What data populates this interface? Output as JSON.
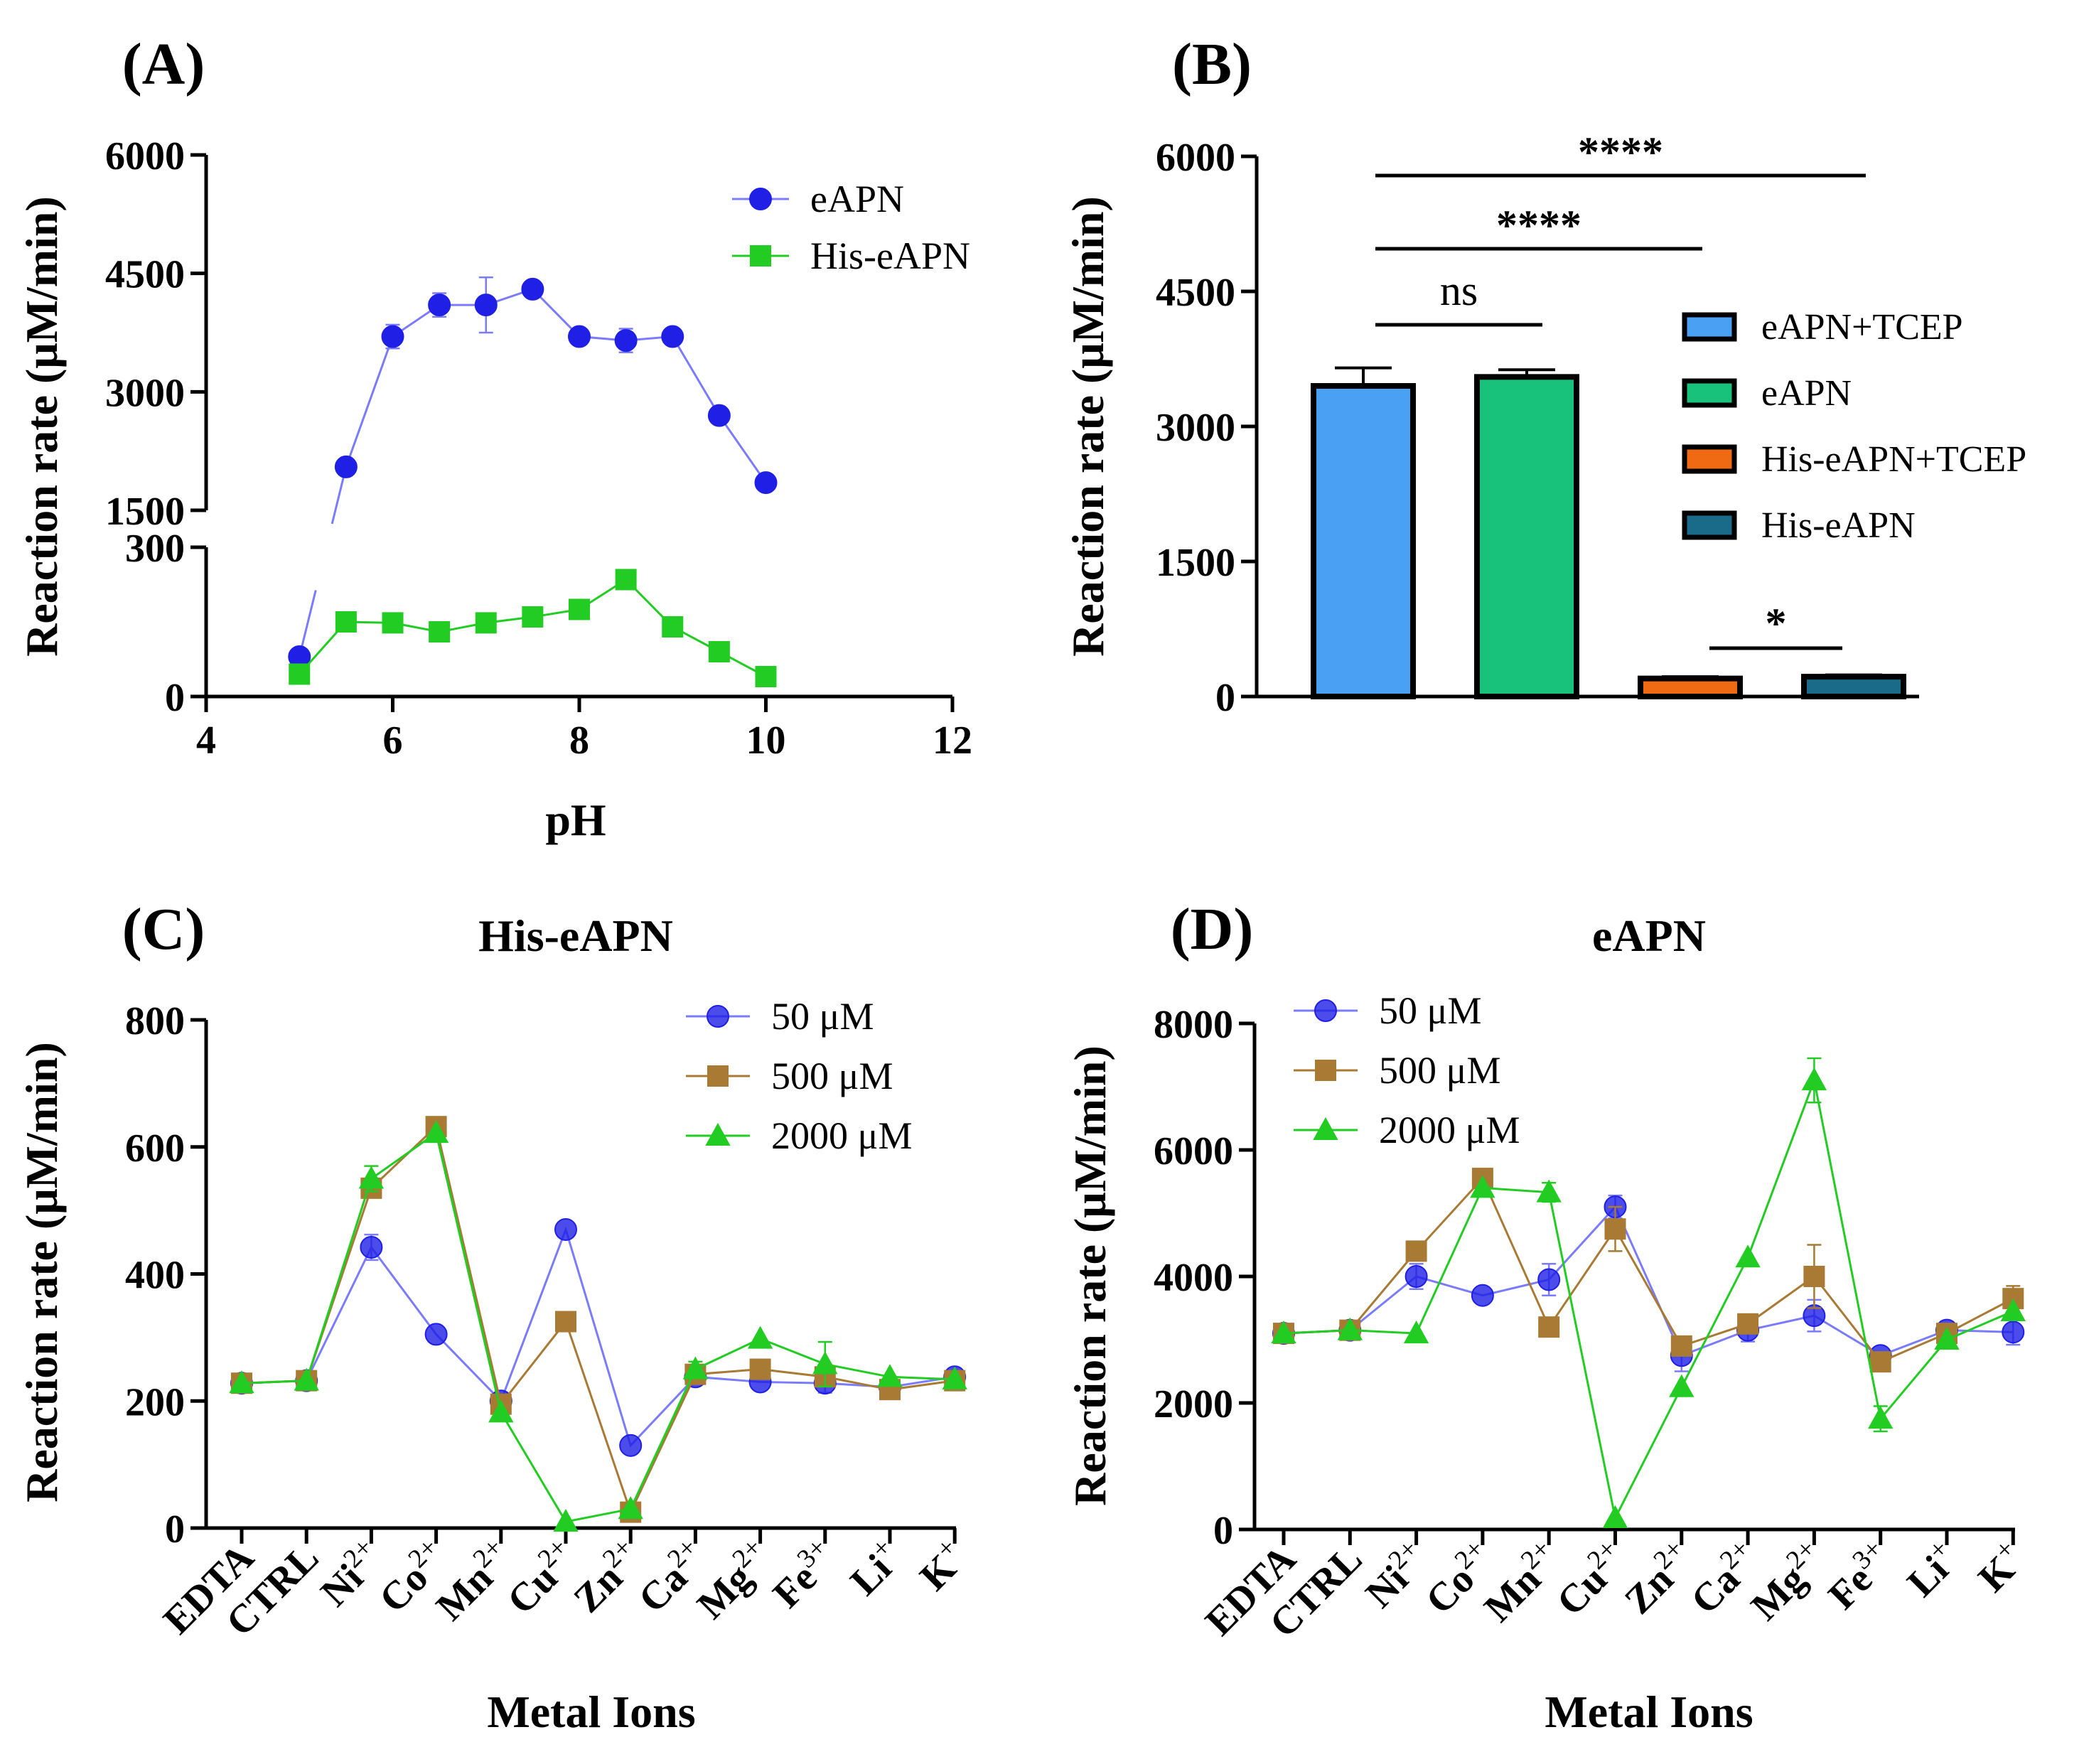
{
  "colors": {
    "blue": "#1f1fe6",
    "blue_light": "#7b7bff",
    "green": "#22cc22",
    "brown": "#a87a34",
    "bar1": "#4aa0f2",
    "bar2": "#19c27a",
    "bar3": "#f06a14",
    "bar4": "#1a6a8a",
    "axis": "#000000"
  },
  "chart_data": [
    {
      "panel": "(A)",
      "type": "line",
      "title": "",
      "xlabel": "pH",
      "ylabel": "Reaction rate (μM/min)",
      "xlim": [
        4,
        12
      ],
      "xticks": [
        "4",
        "6",
        "8",
        "10",
        "12"
      ],
      "y_axis_broken": true,
      "ylim_lower": [
        0,
        300
      ],
      "ylim_upper": [
        1500,
        6000
      ],
      "yticks_lower": [
        "0",
        "300"
      ],
      "yticks_upper": [
        "1500",
        "3000",
        "4500",
        "6000"
      ],
      "x": [
        5,
        5.5,
        6,
        6.5,
        7,
        7.5,
        8,
        8.5,
        9,
        9.5,
        10
      ],
      "series": [
        {
          "name": "eAPN",
          "marker": "circle",
          "values": [
            80,
            2050,
            3700,
            4100,
            4100,
            4300,
            3700,
            3650,
            3700,
            2700,
            1850
          ],
          "errors": [
            0,
            0,
            150,
            150,
            350,
            0,
            0,
            150,
            0,
            0,
            0
          ]
        },
        {
          "name": "His-eAPN",
          "marker": "square",
          "values": [
            45,
            150,
            148,
            130,
            148,
            160,
            175,
            235,
            140,
            90,
            40
          ],
          "errors": [
            0,
            0,
            0,
            0,
            0,
            0,
            0,
            0,
            0,
            0,
            0
          ]
        }
      ],
      "legend_position": "top-right"
    },
    {
      "panel": "(B)",
      "type": "bar",
      "title": "",
      "xlabel": "",
      "ylabel": "Reaction rate (μM/min)",
      "ylim": [
        0,
        6000
      ],
      "yticks": [
        "0",
        "1500",
        "3000",
        "4500",
        "6000"
      ],
      "categories": [
        "eAPN+TCEP",
        "eAPN",
        "His-eAPN+TCEP",
        "His-eAPN"
      ],
      "values": [
        3450,
        3550,
        200,
        220
      ],
      "errors": [
        200,
        80,
        20,
        20
      ],
      "significance": [
        {
          "label": "ns",
          "from": 0,
          "to": 1,
          "level": 4100
        },
        {
          "label": "****",
          "from": 0,
          "to": 2,
          "level": 4950
        },
        {
          "label": "****",
          "from": 0,
          "to": 3,
          "level": 5800
        },
        {
          "label": "*",
          "from": 2,
          "to": 3,
          "level": 500
        }
      ],
      "legend_position": "right"
    },
    {
      "panel": "(C)",
      "type": "line",
      "title": "His-eAPN",
      "xlabel": "Metal Ions",
      "ylabel": "Reaction rate (μM/min)",
      "ylim": [
        0,
        800
      ],
      "yticks": [
        "0",
        "200",
        "400",
        "600",
        "800"
      ],
      "categories": [
        "EDTA",
        "CTRL",
        "Ni",
        "Co",
        "Mn",
        "Cu",
        "Zn",
        "Ca",
        "Mg",
        "Fe",
        "Li",
        "K"
      ],
      "category_charges": [
        "",
        "",
        "2+",
        "2+",
        "2+",
        "2+",
        "2+",
        "2+",
        "2+",
        "3+",
        "+",
        "+"
      ],
      "series": [
        {
          "name": "50 μM",
          "marker": "circle",
          "values": [
            228,
            232,
            442,
            305,
            200,
            470,
            130,
            238,
            230,
            228,
            222,
            238
          ],
          "errors": [
            0,
            0,
            20,
            0,
            0,
            0,
            0,
            0,
            0,
            15,
            0,
            0
          ]
        },
        {
          "name": "500 μM",
          "marker": "square",
          "values": [
            228,
            232,
            535,
            632,
            195,
            325,
            25,
            242,
            250,
            238,
            218,
            232
          ],
          "errors": [
            0,
            0,
            0,
            0,
            0,
            0,
            0,
            0,
            0,
            0,
            0,
            0
          ]
        },
        {
          "name": "2000 μM",
          "marker": "triangle",
          "values": [
            228,
            232,
            550,
            622,
            182,
            10,
            30,
            250,
            298,
            258,
            238,
            234
          ],
          "errors": [
            0,
            0,
            20,
            0,
            0,
            0,
            0,
            12,
            0,
            35,
            0,
            0
          ]
        }
      ],
      "legend_position": "top-right"
    },
    {
      "panel": "(D)",
      "type": "line",
      "title": "eAPN",
      "xlabel": "Metal Ions",
      "ylabel": "Reaction rate (μM/min)",
      "ylim": [
        0,
        8000
      ],
      "yticks": [
        "0",
        "2000",
        "4000",
        "6000",
        "8000"
      ],
      "categories": [
        "EDTA",
        "CTRL",
        "Ni",
        "Co",
        "Mn",
        "Cu",
        "Zn",
        "Ca",
        "Mg",
        "Fe",
        "Li",
        "K"
      ],
      "category_charges": [
        "",
        "",
        "2+",
        "2+",
        "2+",
        "2+",
        "2+",
        "2+",
        "2+",
        "3+",
        "+",
        "+"
      ],
      "series": [
        {
          "name": "50 μM",
          "marker": "circle",
          "values": [
            3100,
            3150,
            4000,
            3700,
            3950,
            5100,
            2750,
            3150,
            3380,
            2750,
            3150,
            3120
          ],
          "errors": [
            0,
            0,
            200,
            0,
            250,
            180,
            250,
            180,
            250,
            0,
            0,
            200
          ]
        },
        {
          "name": "500 μM",
          "marker": "square",
          "values": [
            3100,
            3150,
            4400,
            5550,
            3200,
            4750,
            2900,
            3250,
            4000,
            2650,
            3100,
            3650
          ],
          "errors": [
            0,
            0,
            0,
            0,
            0,
            350,
            0,
            0,
            500,
            0,
            0,
            200
          ]
        },
        {
          "name": "2000 μM",
          "marker": "triangle",
          "values": [
            3100,
            3150,
            3100,
            5400,
            5330,
            180,
            2250,
            4300,
            7100,
            1750,
            3000,
            3450
          ],
          "errors": [
            0,
            0,
            0,
            0,
            150,
            0,
            0,
            0,
            350,
            200,
            0,
            0
          ]
        }
      ],
      "legend_position": "top-left"
    }
  ]
}
